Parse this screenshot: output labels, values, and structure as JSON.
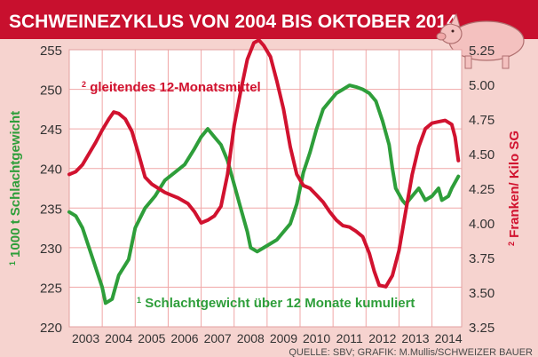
{
  "header": {
    "title": "SCHWEINEZYKLUS VON 2004 BIS OKTOBER 2014"
  },
  "source": "QUELLE: SBV; GRAFIK: M.Mullis/SCHWEIZER BAUER",
  "colors": {
    "header_bg": "#c8102e",
    "plot_bg": "#ffffff",
    "outer_bg": "#f6d3cf",
    "green": "#2e9e3a",
    "red": "#d1122f",
    "grid": "#f0a7a7"
  },
  "icons": {
    "pig": "pig-icon"
  },
  "chart_data": {
    "type": "line",
    "x_ticks": [
      "2003",
      "2004",
      "2005",
      "2006",
      "2007",
      "2008",
      "2009",
      "2010",
      "2011",
      "2012",
      "2013",
      "2014"
    ],
    "x_range": [
      2003.0,
      2014.9
    ],
    "y_left": {
      "label": "1000 t Schlachtgewicht",
      "label_sup": "1",
      "range": [
        220,
        255
      ],
      "ticks": [
        "255",
        "250",
        "245",
        "240",
        "235",
        "230",
        "225",
        "220"
      ]
    },
    "y_right": {
      "label": "Franken/ Kilo SG",
      "label_sup": "2",
      "range": [
        3.25,
        5.25
      ],
      "ticks": [
        "5.25",
        "5.00",
        "4.75",
        "4.50",
        "4.25",
        "4.00",
        "3.75",
        "3.50",
        "3.25"
      ]
    },
    "grid": true,
    "annotations": {
      "green_label": "Schlachtgewicht über 12 Monate kumuliert",
      "green_sup": "1",
      "red_label": "gleitendes 12-Monatsmittel",
      "red_sup": "2"
    },
    "series": [
      {
        "color": "#2e9e3a",
        "axis": "left",
        "x": [
          2003.0,
          2003.2,
          2003.4,
          2003.6,
          2003.8,
          2004.0,
          2004.1,
          2004.3,
          2004.5,
          2004.8,
          2005.0,
          2005.3,
          2005.6,
          2005.9,
          2006.2,
          2006.5,
          2006.8,
          2007.0,
          2007.2,
          2007.4,
          2007.6,
          2007.8,
          2008.0,
          2008.2,
          2008.4,
          2008.5,
          2008.7,
          2008.9,
          2009.1,
          2009.3,
          2009.5,
          2009.7,
          2009.9,
          2010.1,
          2010.3,
          2010.5,
          2010.7,
          2010.9,
          2011.1,
          2011.3,
          2011.5,
          2011.7,
          2011.9,
          2012.1,
          2012.3,
          2012.5,
          2012.7,
          2012.8,
          2012.9,
          2013.1,
          2013.2,
          2013.4,
          2013.6,
          2013.8,
          2014.0,
          2014.2,
          2014.3,
          2014.5,
          2014.6,
          2014.8
        ],
        "y": [
          234.5,
          234.0,
          232.5,
          230.0,
          227.5,
          225.0,
          223.0,
          223.5,
          226.5,
          228.5,
          232.5,
          235.0,
          236.5,
          238.5,
          239.5,
          240.5,
          242.5,
          244.0,
          245.0,
          244.0,
          243.0,
          241.0,
          238.0,
          235.0,
          232.0,
          230.0,
          229.5,
          230.0,
          230.5,
          231.0,
          232.0,
          233.0,
          235.5,
          239.5,
          242.0,
          245.0,
          247.5,
          248.5,
          249.5,
          250.0,
          250.5,
          250.3,
          250.0,
          249.5,
          248.5,
          246.0,
          243.0,
          240.0,
          237.5,
          236.0,
          235.5,
          236.5,
          237.5,
          236.0,
          236.5,
          237.5,
          236.0,
          236.5,
          237.5,
          239.0
        ]
      },
      {
        "color": "#d1122f",
        "axis": "right",
        "x": [
          2003.0,
          2003.2,
          2003.4,
          2003.6,
          2003.8,
          2004.0,
          2004.2,
          2004.35,
          2004.5,
          2004.7,
          2004.9,
          2005.1,
          2005.3,
          2005.5,
          2005.7,
          2005.9,
          2006.1,
          2006.3,
          2006.6,
          2006.8,
          2007.0,
          2007.2,
          2007.4,
          2007.6,
          2007.8,
          2008.0,
          2008.2,
          2008.4,
          2008.6,
          2008.75,
          2008.9,
          2009.1,
          2009.3,
          2009.5,
          2009.7,
          2009.9,
          2010.1,
          2010.3,
          2010.5,
          2010.7,
          2010.9,
          2011.1,
          2011.3,
          2011.5,
          2011.7,
          2011.9,
          2012.1,
          2012.25,
          2012.4,
          2012.6,
          2012.8,
          2013.0,
          2013.2,
          2013.4,
          2013.6,
          2013.8,
          2014.0,
          2014.2,
          2014.4,
          2014.6,
          2014.7,
          2014.8
        ],
        "y": [
          4.35,
          4.37,
          4.42,
          4.5,
          4.58,
          4.67,
          4.75,
          4.8,
          4.79,
          4.75,
          4.66,
          4.5,
          4.33,
          4.28,
          4.25,
          4.22,
          4.2,
          4.18,
          4.14,
          4.08,
          4.0,
          4.02,
          4.05,
          4.12,
          4.35,
          4.7,
          4.95,
          5.18,
          5.3,
          5.32,
          5.28,
          5.2,
          5.02,
          4.82,
          4.55,
          4.35,
          4.27,
          4.25,
          4.2,
          4.15,
          4.08,
          4.02,
          3.98,
          3.97,
          3.94,
          3.9,
          3.78,
          3.65,
          3.55,
          3.54,
          3.62,
          3.8,
          4.08,
          4.35,
          4.55,
          4.68,
          4.72,
          4.73,
          4.74,
          4.71,
          4.62,
          4.45
        ]
      }
    ]
  }
}
